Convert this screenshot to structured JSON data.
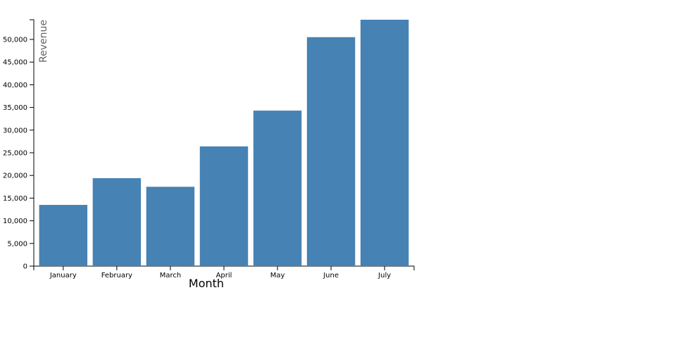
{
  "chart_data": {
    "type": "bar",
    "x_label": "Month",
    "y_label": "Revenue",
    "categories": [
      "January",
      "February",
      "March",
      "April",
      "May",
      "June",
      "July"
    ],
    "values": [
      13500,
      19400,
      17500,
      26400,
      34300,
      50500,
      54350
    ],
    "color": "#4682b4",
    "ylim": [
      0,
      54350
    ],
    "yticks": [
      0,
      {
        "value": 5000,
        "label": "5,000"
      },
      {
        "value": 10000,
        "label": "10,000"
      },
      {
        "value": 15000,
        "label": "15,000"
      },
      {
        "value": 20000,
        "label": "20,000"
      },
      {
        "value": 25000,
        "label": "25,000"
      },
      {
        "value": 30000,
        "label": "30,000"
      },
      {
        "value": 35000,
        "label": "35,000"
      },
      {
        "value": 40000,
        "label": "40,000"
      },
      {
        "value": 45000,
        "label": "45,000"
      },
      {
        "value": 50000,
        "label": "50,000"
      }
    ],
    "grid": false
  }
}
